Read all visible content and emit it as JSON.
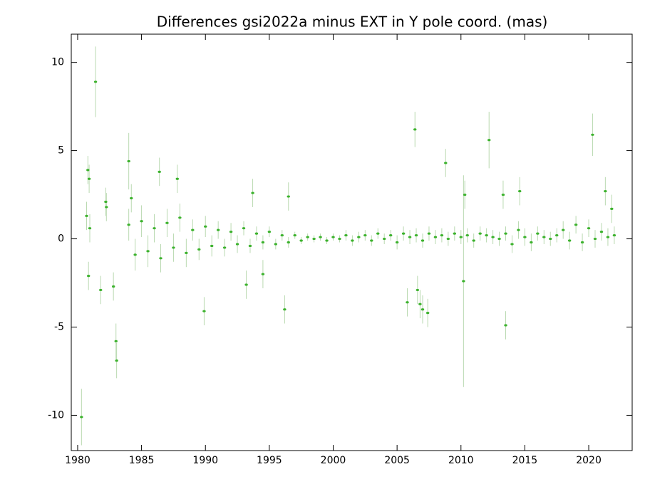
{
  "chart_data": {
    "type": "scatter",
    "title": "Differences gsi2022a minus EXT in Y pole coord. (mas)",
    "color": "#3cb22d",
    "error_color": "#b9d9b0",
    "xlim": [
      1979.5,
      2023.4
    ],
    "ylim": [
      -12,
      11.6
    ],
    "xticks": [
      1980,
      1985,
      1990,
      1995,
      2000,
      2005,
      2010,
      2015,
      2020
    ],
    "yticks": [
      -10,
      -5,
      0,
      5,
      10
    ],
    "x": [
      1980.3,
      1980.7,
      1980.8,
      1980.9,
      1980.95,
      1980.85,
      1981.4,
      1981.8,
      1982.2,
      1982.25,
      1982.8,
      1983.0,
      1983.05,
      1984.0,
      1984.2,
      1986.4,
      1987.8,
      1989.9,
      1993.2,
      1993.7,
      1994.5,
      1996.2,
      1996.5,
      2005.8,
      2006.4,
      2006.6,
      2006.8,
      2007.0,
      2007.4,
      2008.8,
      2010.2,
      2010.3,
      2012.2,
      2013.3,
      2013.5,
      2014.6,
      2020.3,
      2021.3,
      2021.8,
      1984,
      1984.5,
      1985,
      1985.5,
      1986,
      1986.5,
      1987,
      1987.5,
      1988,
      1988.5,
      1989,
      1989.5,
      1990,
      1990.5,
      1991,
      1991.5,
      1992,
      1992.5,
      1993,
      1993.5,
      1994,
      1994.5,
      1995,
      1995.5,
      1996,
      1996.5,
      1997,
      1997.5,
      1998,
      1998.5,
      1999,
      1999.5,
      2000,
      2000.5,
      2001,
      2001.5,
      2002,
      2002.5,
      2003,
      2003.5,
      2004,
      2004.5,
      2005,
      2005.5,
      2006,
      2006.5,
      2007,
      2007.5,
      2008,
      2008.5,
      2009,
      2009.5,
      2010,
      2010.5,
      2011,
      2011.5,
      2012,
      2012.5,
      2013,
      2013.5,
      2014,
      2014.5,
      2015,
      2015.5,
      2016,
      2016.5,
      2017,
      2017.5,
      2018,
      2018.5,
      2019,
      2019.5,
      2020,
      2020.5,
      2021,
      2021.5,
      2022
    ],
    "values": [
      -10.1,
      1.3,
      3.9,
      3.4,
      0.6,
      -2.1,
      8.9,
      -2.9,
      2.1,
      1.8,
      -2.7,
      -5.8,
      -6.9,
      4.4,
      2.3,
      3.8,
      3.4,
      -4.1,
      -2.6,
      2.6,
      -2.0,
      -4.0,
      2.4,
      -3.6,
      6.2,
      -2.9,
      -3.7,
      -4.0,
      -4.2,
      4.3,
      -2.4,
      2.5,
      5.6,
      2.5,
      -4.9,
      2.7,
      5.9,
      2.7,
      1.7,
      0.8,
      -0.9,
      1.0,
      -0.7,
      0.6,
      -1.1,
      0.9,
      -0.5,
      1.2,
      -0.8,
      0.5,
      -0.6,
      0.7,
      -0.4,
      0.5,
      -0.5,
      0.4,
      -0.3,
      0.6,
      -0.4,
      0.3,
      -0.2,
      0.4,
      -0.3,
      0.2,
      -0.2,
      0.2,
      -0.1,
      0.1,
      0.0,
      0.1,
      -0.1,
      0.1,
      0.0,
      0.2,
      -0.1,
      0.1,
      0.2,
      -0.1,
      0.3,
      0.0,
      0.2,
      -0.2,
      0.3,
      0.1,
      0.2,
      -0.1,
      0.3,
      0.1,
      0.2,
      0.0,
      0.3,
      0.1,
      0.2,
      -0.1,
      0.3,
      0.2,
      0.1,
      0.0,
      0.3,
      -0.3,
      0.5,
      0.1,
      -0.2,
      0.3,
      0.1,
      0.0,
      0.2,
      0.5,
      -0.1,
      0.8,
      -0.2,
      0.6,
      0.0,
      0.4,
      0.1,
      0.2
    ],
    "errors": [
      1.6,
      0.8,
      0.8,
      0.8,
      0.8,
      0.8,
      2.0,
      0.8,
      0.8,
      0.8,
      0.8,
      1.0,
      1.0,
      1.6,
      0.8,
      0.8,
      0.8,
      0.8,
      0.8,
      0.8,
      0.8,
      0.8,
      0.8,
      0.8,
      1.0,
      0.8,
      0.8,
      0.8,
      0.8,
      0.8,
      6.0,
      0.8,
      1.6,
      0.8,
      0.8,
      0.8,
      1.2,
      0.8,
      0.8,
      0.9,
      0.9,
      0.9,
      0.9,
      0.8,
      0.8,
      0.8,
      0.8,
      0.8,
      0.8,
      0.6,
      0.6,
      0.6,
      0.6,
      0.5,
      0.5,
      0.5,
      0.5,
      0.4,
      0.4,
      0.4,
      0.4,
      0.3,
      0.3,
      0.3,
      0.3,
      0.2,
      0.2,
      0.2,
      0.2,
      0.2,
      0.2,
      0.2,
      0.2,
      0.3,
      0.3,
      0.3,
      0.3,
      0.3,
      0.3,
      0.3,
      0.3,
      0.4,
      0.4,
      0.4,
      0.4,
      0.4,
      0.4,
      0.4,
      0.4,
      0.4,
      0.4,
      0.4,
      0.4,
      0.4,
      0.4,
      0.4,
      0.4,
      0.4,
      0.4,
      0.5,
      0.5,
      0.5,
      0.5,
      0.4,
      0.4,
      0.4,
      0.4,
      0.5,
      0.5,
      0.5,
      0.5,
      0.5,
      0.5,
      0.5,
      0.5,
      0.5
    ]
  }
}
